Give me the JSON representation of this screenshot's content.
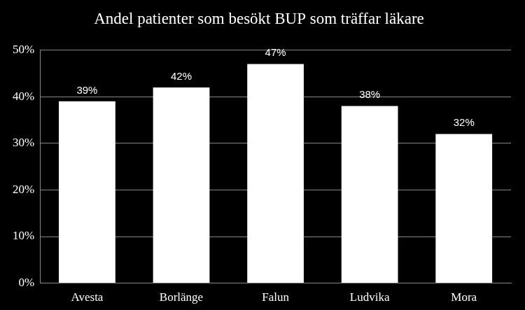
{
  "chart_data": {
    "type": "bar",
    "title": "Andel patienter som besökt BUP som träffar läkare",
    "categories": [
      "Avesta",
      "Borlänge",
      "Falun",
      "Ludvika",
      "Mora"
    ],
    "values": [
      39,
      42,
      47,
      38,
      32
    ],
    "value_labels": [
      "39%",
      "42%",
      "47%",
      "38%",
      "32%"
    ],
    "color": "#ffffff",
    "ylim": [
      0,
      50
    ],
    "yticks": [
      {
        "value": 0,
        "label": "0%"
      },
      {
        "value": 10,
        "label": "10%"
      },
      {
        "value": 20,
        "label": "20%"
      },
      {
        "value": 30,
        "label": "30%"
      },
      {
        "value": 40,
        "label": "40%"
      },
      {
        "value": 50,
        "label": "50%"
      }
    ],
    "grid": true,
    "data_labels": true
  }
}
